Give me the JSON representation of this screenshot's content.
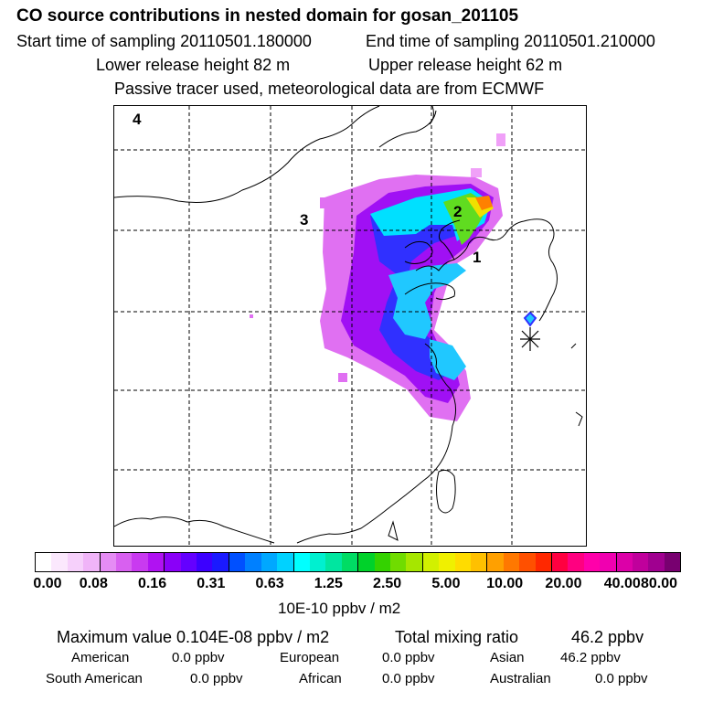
{
  "header": {
    "title": "CO  source contributions in nested domain for gosan_201105",
    "start_label": "Start time of sampling 20110501.180000",
    "end_label": "End time of sampling 20110501.210000",
    "lower_release": "Lower release height   82 m",
    "upper_release": "Upper release height   62 m",
    "tracer_note": "Passive tracer used, meteorological data are from ECMWF"
  },
  "map": {
    "region_labels": [
      "1",
      "2",
      "3",
      "4"
    ],
    "receptor_marker": "asterisk-icon",
    "gridline_color": "#000000"
  },
  "colorbar": {
    "unit_label": "10E-10 ppbv / m2",
    "ticks": [
      "0.00",
      "0.08",
      "0.16",
      "0.31",
      "0.63",
      "1.25",
      "2.50",
      "5.00",
      "10.00",
      "20.00",
      "40.00",
      "80.00"
    ],
    "colors": [
      "#ffffff",
      "#fbe8fd",
      "#f6d0fb",
      "#f0b4f8",
      "#e58cf4",
      "#d860f0",
      "#c93af0",
      "#b012f2",
      "#8a00f8",
      "#6400ff",
      "#3c00ff",
      "#1a1aff",
      "#0050ff",
      "#0080ff",
      "#00a8ff",
      "#00d2ff",
      "#00ffff",
      "#00f0d0",
      "#00e6a0",
      "#00dc64",
      "#00d22a",
      "#34d200",
      "#70dc00",
      "#a6e600",
      "#d2f000",
      "#f0f000",
      "#ffdc00",
      "#ffc000",
      "#ffa000",
      "#ff7800",
      "#ff5000",
      "#ff2800",
      "#ff0040",
      "#ff0080",
      "#ff00aa",
      "#f000b0",
      "#dc00a8",
      "#c0009c",
      "#a00090",
      "#780070"
    ]
  },
  "summary": {
    "max_value": "Maximum value  0.104E-08 ppbv / m2",
    "total_mixing": "Total mixing ratio",
    "total_mixing_value": "46.2 ppbv",
    "contributions": [
      {
        "name": "American",
        "value": "0.0 ppbv"
      },
      {
        "name": "European",
        "value": "0.0 ppbv"
      },
      {
        "name": "Asian",
        "value": "46.2 ppbv"
      },
      {
        "name": "South American",
        "value": "0.0 ppbv"
      },
      {
        "name": "African",
        "value": "0.0 ppbv"
      },
      {
        "name": "Australian",
        "value": "0.0 ppbv"
      }
    ]
  }
}
